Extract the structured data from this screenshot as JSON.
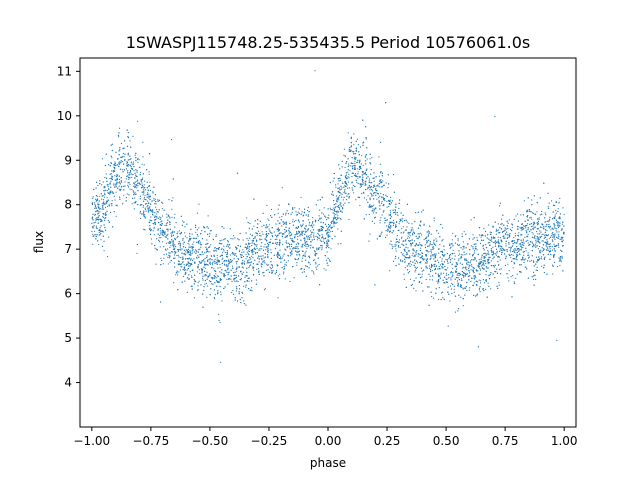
{
  "chart_data": {
    "type": "scatter",
    "title": "1SWASPJ115748.25-535435.5 Period 10576061.0s",
    "xlabel": "phase",
    "ylabel": "flux",
    "xlim": [
      -1.05,
      1.05
    ],
    "ylim": [
      3.0,
      11.3
    ],
    "xticks": [
      "−1.00",
      "−0.75",
      "−0.50",
      "−0.25",
      "0.00",
      "0.25",
      "0.50",
      "0.75",
      "1.00"
    ],
    "xtick_values": [
      -1.0,
      -0.75,
      -0.5,
      -0.25,
      0.0,
      0.25,
      0.5,
      0.75,
      1.0
    ],
    "yticks": [
      "4",
      "5",
      "6",
      "7",
      "8",
      "9",
      "10",
      "11"
    ],
    "ytick_values": [
      4,
      5,
      6,
      7,
      8,
      9,
      10,
      11
    ],
    "grid": false,
    "marker_color": "#1f77b4",
    "series": [
      {
        "x": [
          -0.95,
          -0.9,
          -0.85,
          -0.8,
          -0.75,
          -0.7,
          -0.65,
          -0.6,
          -0.55,
          -0.5,
          -0.45,
          -0.4,
          -0.35,
          -0.3,
          -0.25,
          -0.2,
          -0.15,
          -0.1,
          -0.05,
          0.0,
          0.05,
          0.1,
          0.15,
          0.2,
          0.25,
          0.3,
          0.35,
          0.4,
          0.45,
          0.5,
          0.55,
          0.6,
          0.65,
          0.7,
          0.75,
          0.8,
          0.85,
          0.9,
          0.95
        ],
        "y": [
          7.8,
          8.7,
          8.9,
          8.4,
          8.0,
          7.4,
          7.1,
          6.9,
          6.8,
          6.7,
          6.6,
          6.6,
          6.7,
          7.0,
          7.1,
          7.1,
          7.2,
          7.2,
          7.2,
          7.4,
          8.2,
          8.9,
          8.7,
          8.2,
          7.9,
          7.4,
          7.0,
          6.9,
          6.8,
          6.6,
          6.6,
          6.7,
          6.6,
          7.0,
          7.1,
          7.1,
          7.2,
          7.2,
          7.3
        ]
      }
    ]
  }
}
